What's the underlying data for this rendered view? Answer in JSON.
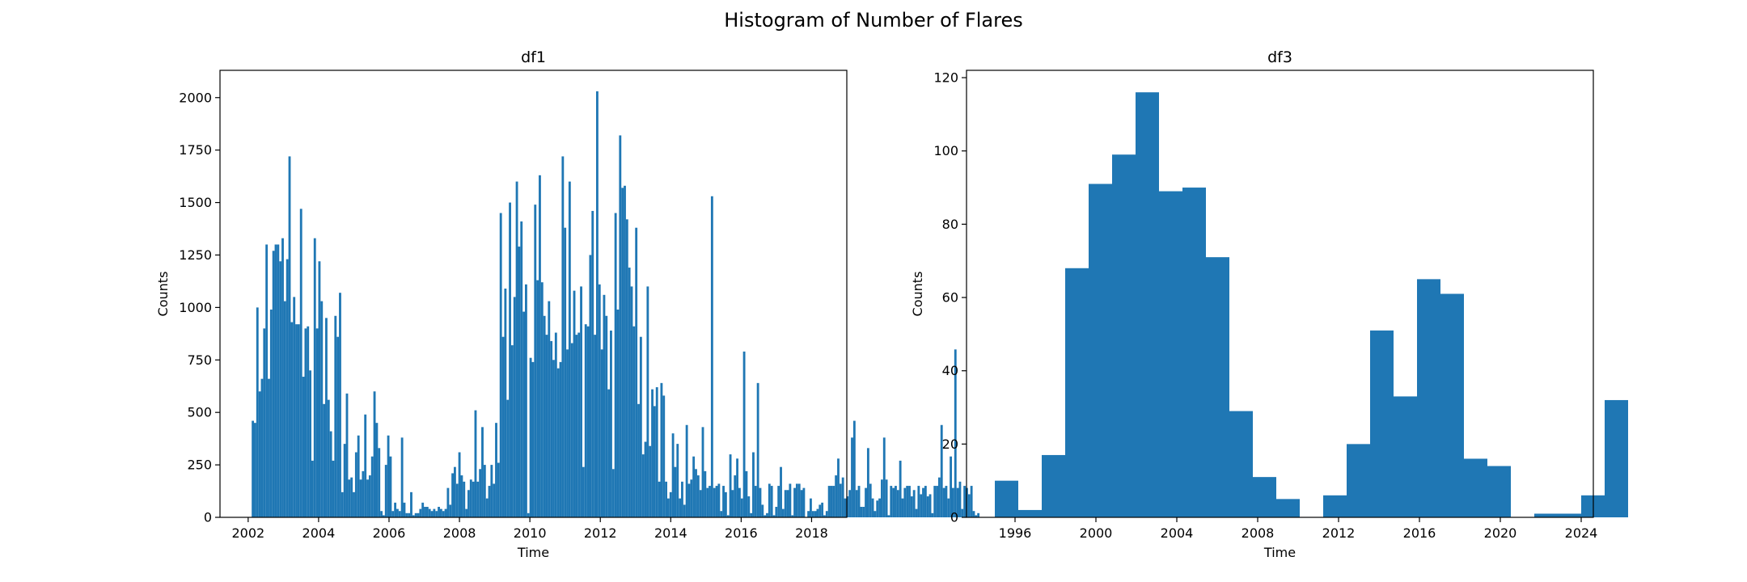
{
  "figure": {
    "suptitle": "Histogram of Number of Flares"
  },
  "colors": {
    "bar": "#1f77b4",
    "axes": "#000000",
    "background": "#ffffff"
  },
  "chart_data": [
    {
      "type": "bar",
      "title": "df1",
      "xlabel": "Time",
      "ylabel": "Counts",
      "xlim": [
        2001.2,
        2019.0
      ],
      "ylim": [
        0,
        2130
      ],
      "x_ticks": [
        2002,
        2004,
        2006,
        2008,
        2010,
        2012,
        2014,
        2016,
        2018
      ],
      "x_tick_labels": [
        "2002",
        "2004",
        "2006",
        "2008",
        "2010",
        "2012",
        "2014",
        "2016",
        "2018"
      ],
      "y_ticks": [
        0,
        250,
        500,
        750,
        1000,
        1250,
        1500,
        1750,
        2000
      ],
      "y_tick_labels": [
        "0",
        "250",
        "500",
        "750",
        "1000",
        "1250",
        "1500",
        "1750",
        "2000"
      ],
      "bin_start": 2002.1,
      "bin_width": 0.0652,
      "values": [
        460,
        450,
        1000,
        600,
        660,
        900,
        1300,
        660,
        990,
        1270,
        1300,
        1300,
        1220,
        1330,
        1030,
        1230,
        1720,
        930,
        1050,
        920,
        920,
        1470,
        670,
        900,
        910,
        700,
        270,
        1330,
        900,
        1220,
        1030,
        540,
        950,
        560,
        410,
        270,
        960,
        860,
        1070,
        120,
        350,
        590,
        180,
        190,
        120,
        310,
        390,
        180,
        220,
        490,
        180,
        200,
        290,
        600,
        450,
        330,
        30,
        10,
        250,
        390,
        290,
        30,
        70,
        40,
        30,
        380,
        70,
        20,
        20,
        120,
        10,
        20,
        20,
        40,
        70,
        50,
        50,
        40,
        30,
        40,
        30,
        50,
        40,
        30,
        40,
        140,
        60,
        210,
        240,
        160,
        310,
        200,
        170,
        40,
        130,
        180,
        170,
        510,
        170,
        230,
        430,
        250,
        90,
        150,
        250,
        160,
        450,
        260,
        1450,
        860,
        1090,
        560,
        1500,
        820,
        1050,
        1600,
        1290,
        1410,
        980,
        1110,
        20,
        760,
        740,
        1490,
        1130,
        1630,
        1120,
        960,
        870,
        1030,
        840,
        750,
        880,
        710,
        740,
        1720,
        1380,
        800,
        1600,
        830,
        1080,
        870,
        880,
        1100,
        240,
        920,
        910,
        1250,
        1460,
        870,
        2030,
        1110,
        800,
        1060,
        960,
        610,
        890,
        230,
        1450,
        990,
        1820,
        1570,
        1580,
        1420,
        1190,
        1100,
        910,
        1380,
        540,
        860,
        300,
        360,
        1100,
        340,
        610,
        530,
        620,
        170,
        640,
        580,
        170,
        90,
        120,
        400,
        240,
        350,
        90,
        170,
        60,
        440,
        160,
        180,
        290,
        230,
        200,
        130,
        430,
        220,
        140,
        150,
        1530,
        140,
        150,
        160,
        30,
        150,
        120,
        10,
        300,
        130,
        200,
        280,
        140,
        90,
        790,
        220,
        100,
        20,
        310,
        150,
        640,
        140,
        60,
        10,
        20,
        160,
        150,
        10,
        50,
        150,
        240,
        40,
        130,
        130,
        160,
        10,
        140,
        160,
        160,
        130,
        140,
        0,
        30,
        90,
        30,
        30,
        40,
        60,
        70,
        10,
        30,
        150,
        150,
        150,
        200,
        280,
        160,
        190,
        90,
        100,
        130,
        380,
        460,
        130,
        150,
        50,
        50,
        140,
        330,
        160,
        90,
        30,
        80,
        90,
        180,
        380,
        180,
        10,
        150,
        140,
        150,
        130,
        270,
        90,
        140,
        150,
        150,
        100,
        130,
        40,
        150,
        110,
        140,
        150,
        100,
        110,
        20,
        150,
        150,
        190,
        440,
        140,
        150,
        90,
        290,
        140,
        800,
        140,
        170,
        40,
        150,
        140,
        110,
        150,
        30,
        10,
        20
      ]
    },
    {
      "type": "bar",
      "title": "df3",
      "xlabel": "Time",
      "ylabel": "Counts",
      "xlim": [
        1993.6,
        2024.6
      ],
      "ylim": [
        0,
        122
      ],
      "x_ticks": [
        1996,
        2000,
        2004,
        2008,
        2012,
        2016,
        2020,
        2024
      ],
      "x_tick_labels": [
        "1996",
        "2000",
        "2004",
        "2008",
        "2012",
        "2016",
        "2020",
        "2024"
      ],
      "y_ticks": [
        0,
        20,
        40,
        60,
        80,
        100,
        120
      ],
      "y_tick_labels": [
        "0",
        "20",
        "40",
        "60",
        "80",
        "100",
        "120"
      ],
      "bin_start": 1995.0,
      "bin_width": 1.16,
      "values": [
        10,
        2,
        17,
        68,
        91,
        99,
        116,
        89,
        90,
        71,
        29,
        11,
        5,
        0,
        6,
        20,
        51,
        33,
        65,
        61,
        16,
        14,
        0,
        1,
        1,
        6,
        32
      ]
    }
  ]
}
